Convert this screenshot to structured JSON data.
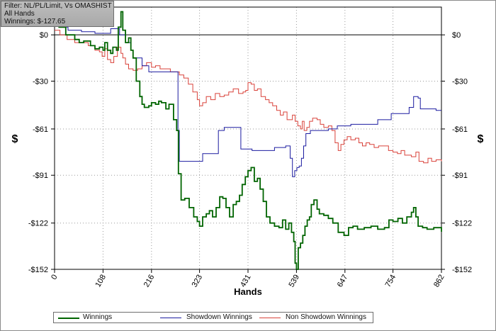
{
  "filter_box": {
    "line1": "Filter: NL/PL/Limit, Vs OMASHIST",
    "line2": "All Hands",
    "line3": "Winnings: $-127.65"
  },
  "chart_data": {
    "type": "line",
    "xlabel": "Hands",
    "ylabel": "$",
    "xlim": [
      0,
      862
    ],
    "ylim": [
      -152,
      18
    ],
    "x_ticks": [
      0,
      108,
      216,
      323,
      431,
      539,
      647,
      754,
      862
    ],
    "y_ticks": [
      0,
      -30,
      -61,
      -91,
      -122,
      -152
    ],
    "y_tick_labels": [
      "$0",
      "-$30",
      "-$61",
      "-$91",
      "-$122",
      "-$152"
    ],
    "grid": true,
    "legend_position": "bottom",
    "series": [
      {
        "name": "Winnings",
        "color": "#006400",
        "points": [
          [
            0,
            10
          ],
          [
            10,
            5
          ],
          [
            25,
            0
          ],
          [
            45,
            -3
          ],
          [
            55,
            -5
          ],
          [
            65,
            -4
          ],
          [
            80,
            -7
          ],
          [
            90,
            -9
          ],
          [
            100,
            -8
          ],
          [
            108,
            -10
          ],
          [
            112,
            -5
          ],
          [
            118,
            -10
          ],
          [
            125,
            -12
          ],
          [
            130,
            -8
          ],
          [
            138,
            -10
          ],
          [
            142,
            5
          ],
          [
            148,
            15
          ],
          [
            152,
            3
          ],
          [
            158,
            -5
          ],
          [
            165,
            -2
          ],
          [
            170,
            -10
          ],
          [
            175,
            -15
          ],
          [
            182,
            -30
          ],
          [
            190,
            -40
          ],
          [
            195,
            -45
          ],
          [
            200,
            -47
          ],
          [
            210,
            -46
          ],
          [
            216,
            -44
          ],
          [
            225,
            -45
          ],
          [
            232,
            -43
          ],
          [
            238,
            -44
          ],
          [
            248,
            -48
          ],
          [
            255,
            -45
          ],
          [
            265,
            -55
          ],
          [
            272,
            -62
          ],
          [
            276,
            -90
          ],
          [
            282,
            -107
          ],
          [
            290,
            -106
          ],
          [
            300,
            -112
          ],
          [
            310,
            -118
          ],
          [
            318,
            -121
          ],
          [
            323,
            -124
          ],
          [
            330,
            -118
          ],
          [
            338,
            -116
          ],
          [
            345,
            -114
          ],
          [
            352,
            -118
          ],
          [
            360,
            -112
          ],
          [
            368,
            -105
          ],
          [
            375,
            -106
          ],
          [
            382,
            -112
          ],
          [
            390,
            -118
          ],
          [
            398,
            -110
          ],
          [
            405,
            -108
          ],
          [
            412,
            -104
          ],
          [
            418,
            -97
          ],
          [
            425,
            -92
          ],
          [
            431,
            -88
          ],
          [
            438,
            -86
          ],
          [
            445,
            -95
          ],
          [
            452,
            -93
          ],
          [
            458,
            -100
          ],
          [
            465,
            -108
          ],
          [
            472,
            -118
          ],
          [
            480,
            -122
          ],
          [
            490,
            -124
          ],
          [
            500,
            -125
          ],
          [
            508,
            -120
          ],
          [
            515,
            -126
          ],
          [
            522,
            -122
          ],
          [
            528,
            -128
          ],
          [
            533,
            -134
          ],
          [
            536,
            -148
          ],
          [
            539,
            -152
          ],
          [
            543,
            -138
          ],
          [
            548,
            -135
          ],
          [
            553,
            -130
          ],
          [
            558,
            -124
          ],
          [
            563,
            -120
          ],
          [
            568,
            -118
          ],
          [
            572,
            -110
          ],
          [
            578,
            -107
          ],
          [
            585,
            -113
          ],
          [
            590,
            -116
          ],
          [
            600,
            -117
          ],
          [
            610,
            -119
          ],
          [
            620,
            -122
          ],
          [
            632,
            -128
          ],
          [
            645,
            -130
          ],
          [
            655,
            -125
          ],
          [
            665,
            -124
          ],
          [
            675,
            -126
          ],
          [
            690,
            -125
          ],
          [
            705,
            -124
          ],
          [
            720,
            -126
          ],
          [
            735,
            -125
          ],
          [
            745,
            -120
          ],
          [
            754,
            -121
          ],
          [
            765,
            -119
          ],
          [
            775,
            -122
          ],
          [
            785,
            -118
          ],
          [
            795,
            -115
          ],
          [
            800,
            -112
          ],
          [
            805,
            -118
          ],
          [
            810,
            -124
          ],
          [
            820,
            -125
          ],
          [
            830,
            -126
          ],
          [
            845,
            -125
          ],
          [
            862,
            -127.65
          ]
        ]
      },
      {
        "name": "Showdown Winnings",
        "color": "#1c1ca0",
        "points": [
          [
            0,
            7
          ],
          [
            15,
            5
          ],
          [
            30,
            3
          ],
          [
            60,
            2
          ],
          [
            90,
            1
          ],
          [
            110,
            1
          ],
          [
            125,
            4
          ],
          [
            145,
            0
          ],
          [
            158,
            -5
          ],
          [
            170,
            -10
          ],
          [
            175,
            -15
          ],
          [
            195,
            -20
          ],
          [
            210,
            -24
          ],
          [
            225,
            -24
          ],
          [
            240,
            -24
          ],
          [
            250,
            -24
          ],
          [
            270,
            -24
          ],
          [
            275,
            -62
          ],
          [
            278,
            -82
          ],
          [
            290,
            -82
          ],
          [
            310,
            -82
          ],
          [
            323,
            -82
          ],
          [
            330,
            -77
          ],
          [
            340,
            -77
          ],
          [
            358,
            -77
          ],
          [
            365,
            -62
          ],
          [
            378,
            -60
          ],
          [
            390,
            -60
          ],
          [
            400,
            -60
          ],
          [
            410,
            -60
          ],
          [
            415,
            -74
          ],
          [
            430,
            -74
          ],
          [
            440,
            -75
          ],
          [
            455,
            -75
          ],
          [
            470,
            -75
          ],
          [
            490,
            -73
          ],
          [
            515,
            -72
          ],
          [
            525,
            -80
          ],
          [
            530,
            -92
          ],
          [
            535,
            -88
          ],
          [
            540,
            -86
          ],
          [
            545,
            -85
          ],
          [
            550,
            -80
          ],
          [
            555,
            -72
          ],
          [
            560,
            -64
          ],
          [
            570,
            -62
          ],
          [
            590,
            -62
          ],
          [
            610,
            -61
          ],
          [
            630,
            -59
          ],
          [
            660,
            -58
          ],
          [
            690,
            -58
          ],
          [
            720,
            -55
          ],
          [
            750,
            -51
          ],
          [
            770,
            -51
          ],
          [
            790,
            -47
          ],
          [
            800,
            -40
          ],
          [
            810,
            -41
          ],
          [
            815,
            -48
          ],
          [
            835,
            -48
          ],
          [
            850,
            -49
          ],
          [
            862,
            -49
          ]
        ]
      },
      {
        "name": "Non Showdown Winnings",
        "color": "#d9423a",
        "points": [
          [
            0,
            3
          ],
          [
            12,
            0
          ],
          [
            28,
            -3
          ],
          [
            45,
            -5
          ],
          [
            62,
            -5
          ],
          [
            75,
            -7
          ],
          [
            90,
            -10
          ],
          [
            100,
            -11
          ],
          [
            106,
            -14
          ],
          [
            112,
            -9
          ],
          [
            118,
            -16
          ],
          [
            125,
            -18
          ],
          [
            132,
            -14
          ],
          [
            140,
            -8
          ],
          [
            148,
            -12
          ],
          [
            152,
            -15
          ],
          [
            158,
            -19
          ],
          [
            165,
            -22
          ],
          [
            175,
            -23
          ],
          [
            185,
            -22
          ],
          [
            195,
            -20
          ],
          [
            205,
            -18
          ],
          [
            216,
            -21
          ],
          [
            225,
            -20
          ],
          [
            235,
            -22
          ],
          [
            248,
            -22
          ],
          [
            258,
            -24
          ],
          [
            268,
            -24
          ],
          [
            278,
            -26
          ],
          [
            288,
            -28
          ],
          [
            298,
            -32
          ],
          [
            308,
            -37
          ],
          [
            318,
            -42
          ],
          [
            323,
            -46
          ],
          [
            330,
            -44
          ],
          [
            338,
            -40
          ],
          [
            348,
            -42
          ],
          [
            358,
            -38
          ],
          [
            368,
            -40
          ],
          [
            378,
            -39
          ],
          [
            388,
            -37
          ],
          [
            398,
            -35
          ],
          [
            410,
            -38
          ],
          [
            420,
            -37
          ],
          [
            426,
            -36
          ],
          [
            431,
            -31
          ],
          [
            438,
            -32
          ],
          [
            445,
            -36
          ],
          [
            452,
            -35
          ],
          [
            460,
            -40
          ],
          [
            470,
            -42
          ],
          [
            478,
            -44
          ],
          [
            486,
            -46
          ],
          [
            495,
            -49
          ],
          [
            503,
            -52
          ],
          [
            510,
            -50
          ],
          [
            518,
            -55
          ],
          [
            525,
            -55
          ],
          [
            530,
            -52
          ],
          [
            536,
            -56
          ],
          [
            542,
            -59
          ],
          [
            548,
            -61
          ],
          [
            552,
            -56
          ],
          [
            556,
            -62
          ],
          [
            562,
            -60
          ],
          [
            568,
            -56
          ],
          [
            575,
            -54
          ],
          [
            585,
            -55
          ],
          [
            592,
            -58
          ],
          [
            600,
            -60
          ],
          [
            610,
            -59
          ],
          [
            618,
            -62
          ],
          [
            625,
            -70
          ],
          [
            632,
            -75
          ],
          [
            638,
            -71
          ],
          [
            645,
            -68
          ],
          [
            652,
            -66
          ],
          [
            660,
            -68
          ],
          [
            670,
            -67
          ],
          [
            678,
            -70
          ],
          [
            686,
            -72
          ],
          [
            694,
            -70
          ],
          [
            702,
            -71
          ],
          [
            712,
            -73
          ],
          [
            722,
            -72
          ],
          [
            735,
            -72
          ],
          [
            744,
            -75
          ],
          [
            754,
            -76
          ],
          [
            764,
            -77
          ],
          [
            772,
            -75
          ],
          [
            780,
            -78
          ],
          [
            786,
            -78
          ],
          [
            795,
            -79
          ],
          [
            805,
            -76
          ],
          [
            812,
            -82
          ],
          [
            822,
            -83
          ],
          [
            832,
            -80
          ],
          [
            840,
            -82
          ],
          [
            850,
            -81
          ],
          [
            862,
            -82
          ]
        ]
      }
    ]
  }
}
